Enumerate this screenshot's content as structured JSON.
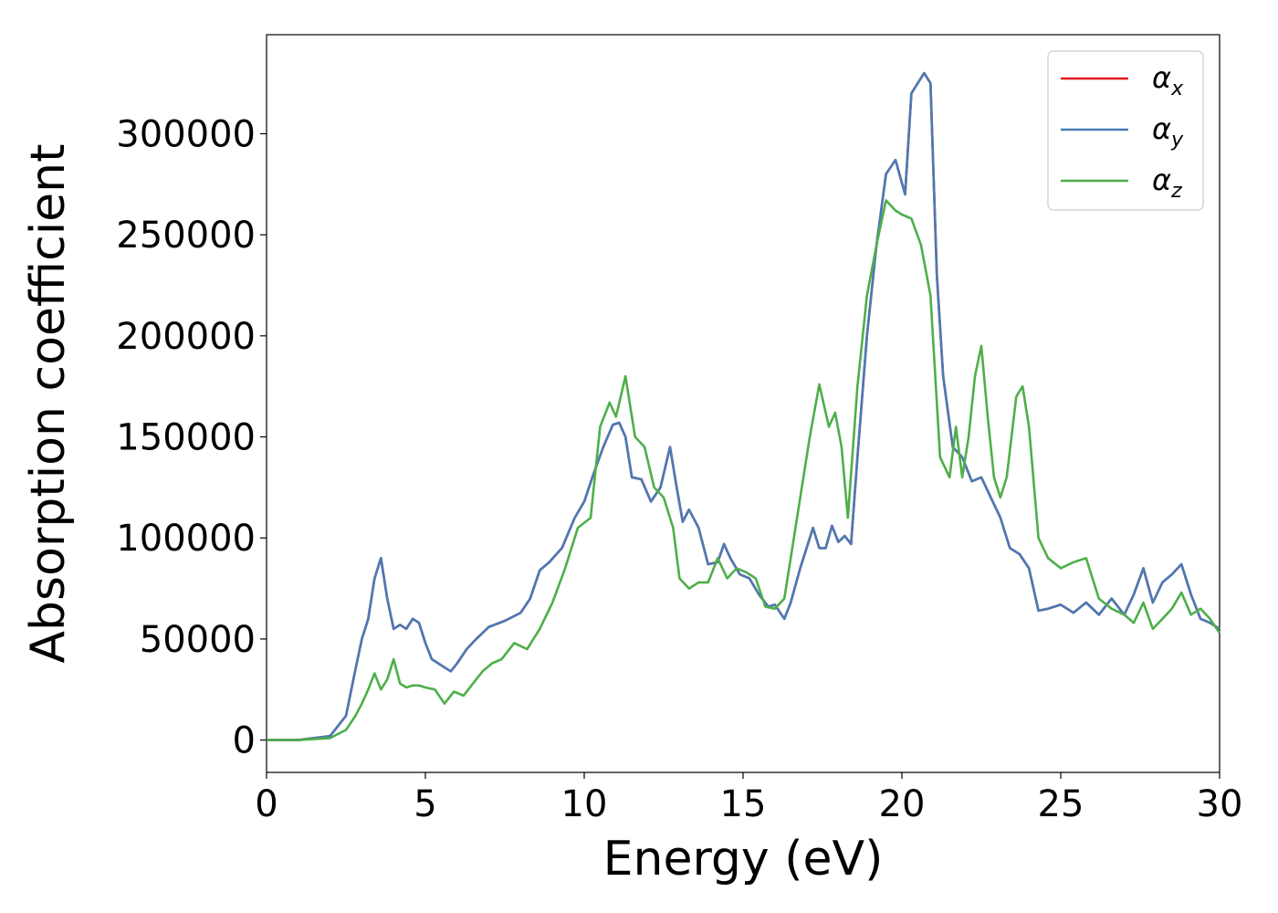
{
  "chart_data": {
    "type": "line",
    "title": "",
    "xlabel": "Energy (eV)",
    "ylabel": "Absorption coefficient",
    "xlim": [
      0,
      30
    ],
    "ylim": [
      -16000,
      349000
    ],
    "xticks": [
      0,
      5,
      10,
      15,
      20,
      25,
      30
    ],
    "xtick_labels": [
      "0",
      "5",
      "10",
      "15",
      "20",
      "25",
      "30"
    ],
    "yticks": [
      0,
      50000,
      100000,
      150000,
      200000,
      250000,
      300000
    ],
    "ytick_labels": [
      "0",
      "50000",
      "100000",
      "150000",
      "200000",
      "250000",
      "300000"
    ],
    "grid": false,
    "legend_position": "top-right",
    "series": [
      {
        "name": "αx",
        "label_base": "α",
        "label_sub": "x",
        "color": "#e41a1c",
        "x": [
          0,
          1,
          2,
          2.5,
          2.8,
          3.0,
          3.2,
          3.4,
          3.6,
          3.8,
          4.0,
          4.2,
          4.4,
          4.6,
          4.8,
          5.0,
          5.2,
          5.5,
          5.8,
          6.0,
          6.3,
          6.6,
          7.0,
          7.5,
          8.0,
          8.3,
          8.6,
          8.9,
          9.3,
          9.7,
          10.0,
          10.3,
          10.6,
          10.9,
          11.1,
          11.3,
          11.5,
          11.8,
          12.1,
          12.4,
          12.7,
          12.9,
          13.1,
          13.3,
          13.6,
          13.9,
          14.2,
          14.4,
          14.6,
          14.9,
          15.2,
          15.5,
          15.8,
          16.0,
          16.3,
          16.5,
          16.8,
          17.0,
          17.2,
          17.4,
          17.6,
          17.8,
          18.0,
          18.2,
          18.4,
          18.6,
          18.9,
          19.2,
          19.5,
          19.8,
          20.1,
          20.3,
          20.5,
          20.7,
          20.9,
          21.1,
          21.3,
          21.6,
          21.9,
          22.2,
          22.5,
          22.8,
          23.1,
          23.4,
          23.7,
          24.0,
          24.3,
          24.6,
          25.0,
          25.4,
          25.8,
          26.2,
          26.6,
          27.0,
          27.3,
          27.6,
          27.9,
          28.2,
          28.5,
          28.8,
          29.1,
          29.4,
          29.7,
          30
        ],
        "y": [
          0,
          0,
          2000,
          12000,
          35000,
          50000,
          60000,
          80000,
          90000,
          70000,
          55000,
          57000,
          55000,
          60000,
          58000,
          48000,
          40000,
          37000,
          34000,
          38000,
          45000,
          50000,
          56000,
          59000,
          63000,
          70000,
          84000,
          88000,
          95000,
          110000,
          118000,
          132000,
          145000,
          156000,
          157000,
          150000,
          130000,
          129000,
          118000,
          125000,
          145000,
          126000,
          108000,
          114000,
          105000,
          87000,
          88000,
          97000,
          90000,
          82000,
          80000,
          72000,
          66000,
          67000,
          60000,
          68000,
          85000,
          95000,
          105000,
          95000,
          95000,
          106000,
          98000,
          101000,
          97000,
          140000,
          200000,
          245000,
          280000,
          287000,
          270000,
          320000,
          325000,
          330000,
          325000,
          230000,
          180000,
          145000,
          140000,
          128000,
          130000,
          120000,
          110000,
          95000,
          92000,
          85000,
          64000,
          65000,
          67000,
          63000,
          68000,
          62000,
          70000,
          62000,
          72000,
          85000,
          68000,
          78000,
          82000,
          87000,
          72000,
          60000,
          58000,
          55000
        ]
      },
      {
        "name": "αy",
        "label_base": "α",
        "label_sub": "y",
        "color": "#4a7ab5",
        "x": [
          0,
          1,
          2,
          2.5,
          2.8,
          3.0,
          3.2,
          3.4,
          3.6,
          3.8,
          4.0,
          4.2,
          4.4,
          4.6,
          4.8,
          5.0,
          5.2,
          5.5,
          5.8,
          6.0,
          6.3,
          6.6,
          7.0,
          7.5,
          8.0,
          8.3,
          8.6,
          8.9,
          9.3,
          9.7,
          10.0,
          10.3,
          10.6,
          10.9,
          11.1,
          11.3,
          11.5,
          11.8,
          12.1,
          12.4,
          12.7,
          12.9,
          13.1,
          13.3,
          13.6,
          13.9,
          14.2,
          14.4,
          14.6,
          14.9,
          15.2,
          15.5,
          15.8,
          16.0,
          16.3,
          16.5,
          16.8,
          17.0,
          17.2,
          17.4,
          17.6,
          17.8,
          18.0,
          18.2,
          18.4,
          18.6,
          18.9,
          19.2,
          19.5,
          19.8,
          20.1,
          20.3,
          20.5,
          20.7,
          20.9,
          21.1,
          21.3,
          21.6,
          21.9,
          22.2,
          22.5,
          22.8,
          23.1,
          23.4,
          23.7,
          24.0,
          24.3,
          24.6,
          25.0,
          25.4,
          25.8,
          26.2,
          26.6,
          27.0,
          27.3,
          27.6,
          27.9,
          28.2,
          28.5,
          28.8,
          29.1,
          29.4,
          29.7,
          30
        ],
        "y": [
          0,
          0,
          2000,
          12000,
          35000,
          50000,
          60000,
          80000,
          90000,
          70000,
          55000,
          57000,
          55000,
          60000,
          58000,
          48000,
          40000,
          37000,
          34000,
          38000,
          45000,
          50000,
          56000,
          59000,
          63000,
          70000,
          84000,
          88000,
          95000,
          110000,
          118000,
          132000,
          145000,
          156000,
          157000,
          150000,
          130000,
          129000,
          118000,
          125000,
          145000,
          126000,
          108000,
          114000,
          105000,
          87000,
          88000,
          97000,
          90000,
          82000,
          80000,
          72000,
          66000,
          67000,
          60000,
          68000,
          85000,
          95000,
          105000,
          95000,
          95000,
          106000,
          98000,
          101000,
          97000,
          140000,
          200000,
          245000,
          280000,
          287000,
          270000,
          320000,
          325000,
          330000,
          325000,
          230000,
          180000,
          145000,
          140000,
          128000,
          130000,
          120000,
          110000,
          95000,
          92000,
          85000,
          64000,
          65000,
          67000,
          63000,
          68000,
          62000,
          70000,
          62000,
          72000,
          85000,
          68000,
          78000,
          82000,
          87000,
          72000,
          60000,
          58000,
          55000
        ]
      },
      {
        "name": "αz",
        "label_base": "α",
        "label_sub": "z",
        "color": "#4daf4a",
        "x": [
          0,
          1,
          2,
          2.5,
          2.8,
          3.0,
          3.2,
          3.4,
          3.6,
          3.8,
          4.0,
          4.2,
          4.4,
          4.6,
          4.8,
          5.0,
          5.3,
          5.6,
          5.9,
          6.2,
          6.5,
          6.8,
          7.1,
          7.4,
          7.8,
          8.2,
          8.6,
          9.0,
          9.4,
          9.8,
          10.2,
          10.5,
          10.8,
          11.0,
          11.3,
          11.6,
          11.9,
          12.2,
          12.5,
          12.8,
          13.0,
          13.3,
          13.6,
          13.9,
          14.2,
          14.5,
          14.8,
          15.1,
          15.4,
          15.7,
          16.0,
          16.3,
          16.6,
          16.9,
          17.1,
          17.4,
          17.7,
          17.9,
          18.1,
          18.3,
          18.6,
          18.9,
          19.2,
          19.5,
          19.8,
          20.0,
          20.3,
          20.6,
          20.9,
          21.2,
          21.5,
          21.7,
          21.9,
          22.1,
          22.3,
          22.5,
          22.7,
          22.9,
          23.1,
          23.3,
          23.6,
          23.8,
          24.0,
          24.3,
          24.6,
          25.0,
          25.4,
          25.8,
          26.2,
          26.6,
          27.0,
          27.3,
          27.6,
          27.9,
          28.2,
          28.5,
          28.8,
          29.1,
          29.4,
          29.7,
          30
        ],
        "y": [
          0,
          0,
          1000,
          5000,
          12000,
          18000,
          25000,
          33000,
          25000,
          30000,
          40000,
          28000,
          26000,
          27000,
          27000,
          26000,
          25000,
          18000,
          24000,
          22000,
          28000,
          34000,
          38000,
          40000,
          48000,
          45000,
          55000,
          68000,
          85000,
          105000,
          110000,
          155000,
          167000,
          160000,
          180000,
          150000,
          145000,
          125000,
          120000,
          105000,
          80000,
          75000,
          78000,
          78000,
          90000,
          80000,
          85000,
          83000,
          80000,
          66000,
          65000,
          70000,
          100000,
          130000,
          150000,
          176000,
          155000,
          162000,
          145000,
          110000,
          175000,
          220000,
          245000,
          267000,
          262000,
          260000,
          258000,
          245000,
          220000,
          140000,
          130000,
          155000,
          130000,
          150000,
          180000,
          195000,
          160000,
          130000,
          120000,
          130000,
          170000,
          175000,
          155000,
          100000,
          90000,
          85000,
          88000,
          90000,
          70000,
          65000,
          62000,
          58000,
          68000,
          55000,
          60000,
          65000,
          73000,
          62000,
          65000,
          60000,
          53000
        ]
      }
    ]
  }
}
